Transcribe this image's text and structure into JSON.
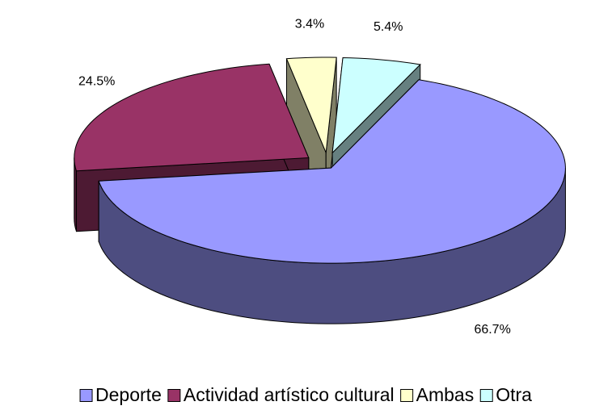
{
  "chart_data": {
    "type": "pie3d",
    "categories": [
      "Deporte",
      "Actividad artístico cultural",
      "Ambas",
      "Otra"
    ],
    "values": [
      66.7,
      24.5,
      3.4,
      5.4
    ],
    "value_labels": [
      "66.7%",
      "24.5%",
      "3.4%",
      "5.4%"
    ],
    "colors": [
      "#9999ff",
      "#993366",
      "#ffffcc",
      "#ccffff"
    ],
    "legend": "bottom"
  }
}
